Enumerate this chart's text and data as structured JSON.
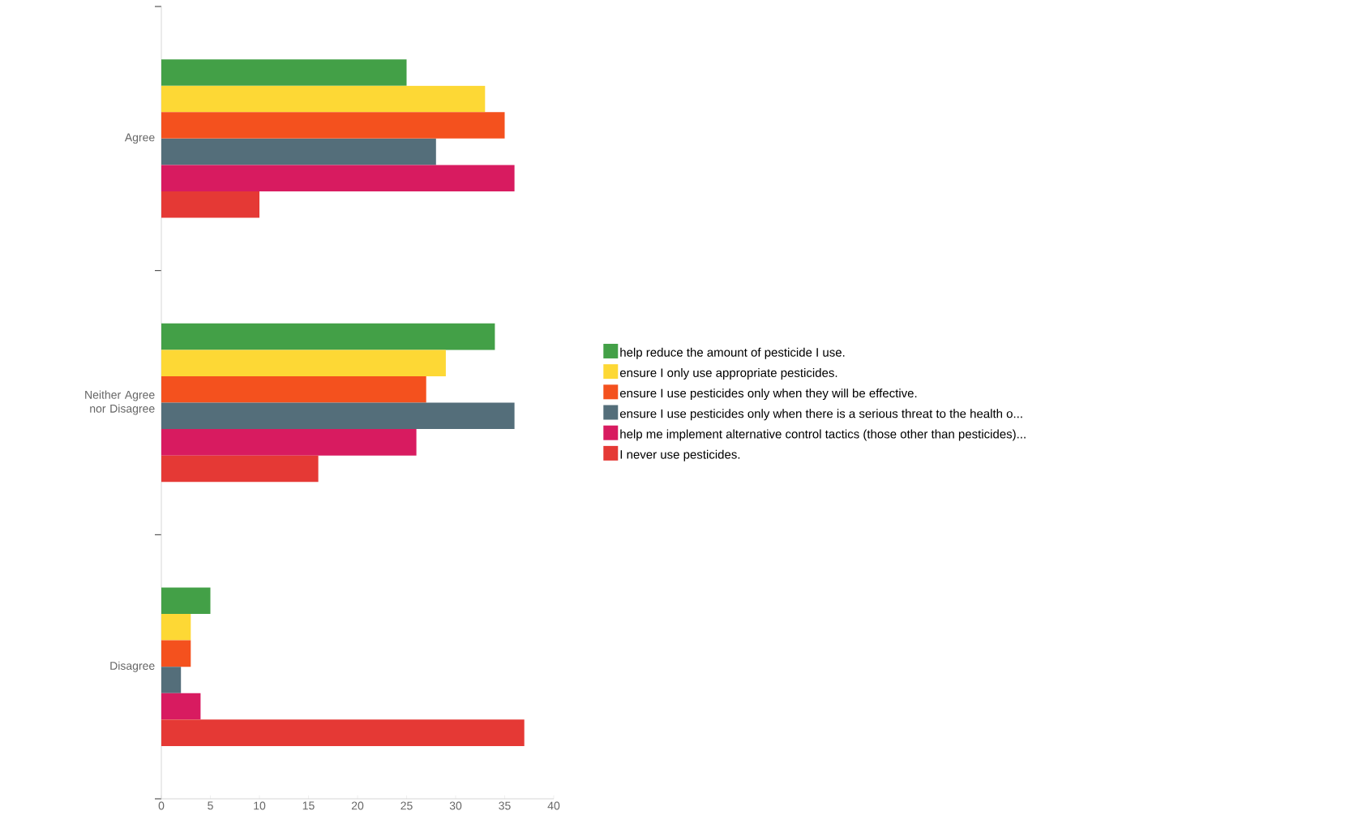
{
  "chart_data": {
    "type": "bar",
    "orientation": "horizontal",
    "categories": [
      "Agree",
      "Neither Agree nor Disagree",
      "Disagree"
    ],
    "series": [
      {
        "name": "help reduce the amount of pesticide I use.",
        "color": "#43a047",
        "values": [
          25,
          34,
          5
        ]
      },
      {
        "name": "ensure I only use appropriate pesticides.",
        "color": "#fdd835",
        "values": [
          33,
          29,
          3
        ]
      },
      {
        "name": "ensure I use pesticides only when they will be effective.",
        "color": "#f4511e",
        "values": [
          35,
          27,
          3
        ]
      },
      {
        "name": "ensure I use pesticides only when there is a serious threat to the health o...",
        "color": "#546e7a",
        "values": [
          28,
          36,
          2
        ]
      },
      {
        "name": "help me implement alternative control tactics (those other than pesticides)...",
        "color": "#d81b60",
        "values": [
          36,
          26,
          4
        ]
      },
      {
        "name": "I never use pesticides.",
        "color": "#e53935",
        "values": [
          10,
          16,
          37
        ]
      }
    ],
    "xlim": [
      0,
      40
    ],
    "xticks": [
      0,
      5,
      10,
      15,
      20,
      25,
      30,
      35,
      40
    ],
    "legend": "right",
    "grid": false
  }
}
